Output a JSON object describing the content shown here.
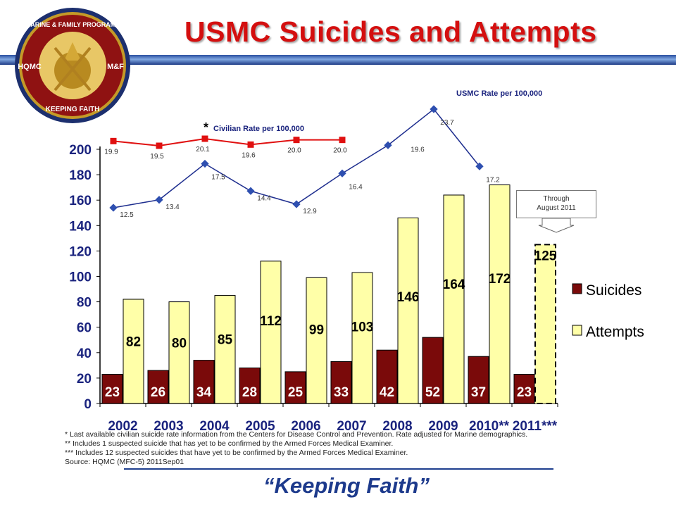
{
  "title": "USMC Suicides and Attempts",
  "footer": "“Keeping Faith”",
  "seal": {
    "top_text": "MARINE & FAMILY PROGRAMS",
    "left_text": "HQMC",
    "right_text": "M&F",
    "bottom_text": "KEEPING FAITH"
  },
  "callout": {
    "line1": "Through",
    "line2": "August 2011"
  },
  "notes": [
    "*    Last available civilian suicide rate information from the Centers for Disease Control and Prevention.  Rate adjusted for Marine demographics.",
    "**   Includes   1 suspected suicide that has yet to be confirmed by the Armed Forces Medical Examiner.",
    "***  Includes 12 suspected suicides that have yet to be confirmed by the Armed Forces Medical Examiner.",
    "       Source: HQMC (MFC-5) 2011Sep01"
  ],
  "colors": {
    "suicides": "#7a0a0a",
    "attempts": "#ffffa8",
    "usmc_line": "#1f2f8f",
    "civilian_line": "#e01010",
    "title": "#d40f0f"
  },
  "chart_data": {
    "type": "bar",
    "categories": [
      "2002",
      "2003",
      "2004",
      "2005",
      "2006",
      "2007",
      "2008",
      "2009",
      "2010**",
      "2011***"
    ],
    "series": [
      {
        "name": "Suicides",
        "values": [
          23,
          26,
          34,
          28,
          25,
          33,
          42,
          52,
          37,
          23
        ]
      },
      {
        "name": "Attempts",
        "values": [
          82,
          80,
          85,
          112,
          99,
          103,
          146,
          164,
          172,
          125
        ]
      }
    ],
    "ylim": [
      0,
      200
    ],
    "yticks": [
      0,
      20,
      40,
      60,
      80,
      100,
      120,
      140,
      160,
      180,
      200
    ],
    "legend": "right",
    "lines": [
      {
        "name": "USMC Rate per 100,000",
        "categories": [
          "2002",
          "2003",
          "2004",
          "2005",
          "2006",
          "2007",
          "2008",
          "2009",
          "2010**"
        ],
        "values": [
          12.5,
          13.4,
          17.5,
          14.4,
          12.9,
          16.4,
          19.6,
          23.7,
          17.2
        ]
      },
      {
        "name": "Civilian Rate per 100,000",
        "marker_label": "*",
        "categories": [
          "2002",
          "2003",
          "2004",
          "2005",
          "2006",
          "2007"
        ],
        "values": [
          19.9,
          19.5,
          20.1,
          19.6,
          20.0,
          20.0
        ]
      }
    ]
  }
}
